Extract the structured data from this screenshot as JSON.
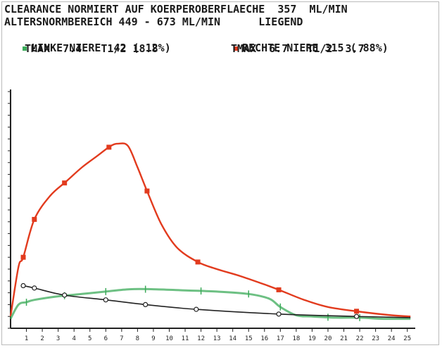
{
  "header": {
    "line1": "CLEARANCE NORMIERT AUF KOERPEROBERFLAECHE  357  ML/MIN",
    "line2": "ALTERSNORMBEREICH 449 - 673 ML/MIN      LIEGEND"
  },
  "legend": [
    {
      "label": "LINKE NIERE  42 ( 12%)",
      "stats": "TMAX  7.4   T1/2 18.8",
      "color": "#3cab5a"
    },
    {
      "label": "RECHTE NIERE 315 ( 88%)",
      "stats": "TMAX  6.7   T1/2  3.7",
      "color": "#e23b1e"
    }
  ],
  "chart_data": {
    "type": "line",
    "xlabel": "",
    "ylabel": "",
    "xlim": [
      0,
      25.5
    ],
    "ylim": [
      0,
      100
    ],
    "x_ticks": [
      "1",
      "2",
      "3",
      "4",
      "5",
      "6",
      "7",
      "8",
      "9",
      "10",
      "11",
      "12",
      "13",
      "14",
      "15",
      "16",
      "17",
      "18",
      "19",
      "20",
      "21",
      "22",
      "23",
      "24",
      "25"
    ],
    "grid": false,
    "series": [
      {
        "name": "RECHTE NIERE",
        "color": "#e23b1e",
        "marker": "square",
        "points": [
          [
            0,
            5
          ],
          [
            0.5,
            26
          ],
          [
            0.8,
            30
          ],
          [
            1.5,
            46
          ],
          [
            2.5,
            56
          ],
          [
            3.5,
            62
          ],
          [
            4.5,
            68
          ],
          [
            5.5,
            73
          ],
          [
            6.3,
            77
          ],
          [
            6.8,
            78
          ],
          [
            7.4,
            77
          ],
          [
            8,
            68
          ],
          [
            8.6,
            58
          ],
          [
            9.5,
            44
          ],
          [
            10.5,
            34
          ],
          [
            11.8,
            28
          ],
          [
            13,
            25
          ],
          [
            14.5,
            22
          ],
          [
            16,
            18.5
          ],
          [
            17,
            16
          ],
          [
            18.5,
            12
          ],
          [
            20,
            9
          ],
          [
            22,
            7
          ],
          [
            24,
            5.5
          ],
          [
            25.2,
            5
          ]
        ],
        "markers_x": [
          0.8,
          1.5,
          3.4,
          6.2,
          8.6,
          11.8,
          16.9,
          21.8
        ]
      },
      {
        "name": "LINKE NIERE",
        "color": "#3cab5a",
        "marker": "tick",
        "points": [
          [
            0,
            4
          ],
          [
            0.5,
            10
          ],
          [
            1,
            11
          ],
          [
            1.5,
            12
          ],
          [
            3,
            13.5
          ],
          [
            4.5,
            14.5
          ],
          [
            6,
            15.5
          ],
          [
            7.5,
            16.5
          ],
          [
            9,
            16.5
          ],
          [
            11,
            16
          ],
          [
            13,
            15.5
          ],
          [
            15,
            14.5
          ],
          [
            16.3,
            12.5
          ],
          [
            17,
            9
          ],
          [
            18,
            5.5
          ],
          [
            19,
            5
          ],
          [
            20.5,
            4.5
          ],
          [
            22,
            4.5
          ],
          [
            23.5,
            4
          ],
          [
            25.2,
            4
          ]
        ],
        "markers_x": [
          1,
          3.4,
          6,
          8.5,
          12,
          15,
          17,
          20,
          22
        ]
      },
      {
        "name": "",
        "color": "#222222",
        "marker": "circle",
        "points": [
          [
            0.8,
            18
          ],
          [
            1.5,
            17
          ],
          [
            3.4,
            14
          ],
          [
            6,
            12
          ],
          [
            8.5,
            10
          ],
          [
            11.7,
            8
          ],
          [
            16.9,
            6
          ],
          [
            21.8,
            5
          ],
          [
            25.2,
            4.5
          ]
        ],
        "markers_x": [
          0.8,
          1.5,
          3.4,
          6,
          8.5,
          11.7,
          16.9,
          21.8
        ]
      }
    ]
  }
}
